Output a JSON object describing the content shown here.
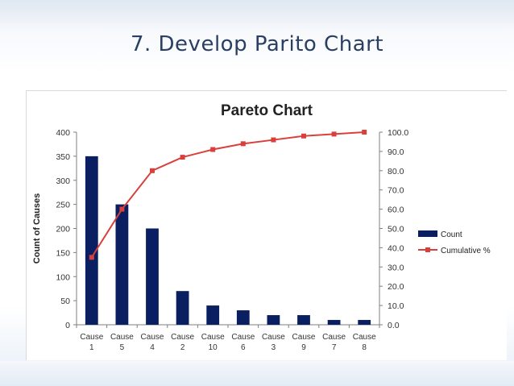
{
  "slide": {
    "title": "7. Develop Parito Chart"
  },
  "chart_data": {
    "type": "bar",
    "title": "Pareto Chart",
    "ylabel": "Count of Causes",
    "y2label": "",
    "categories": [
      [
        "Cause",
        "1"
      ],
      [
        "Cause",
        "5"
      ],
      [
        "Cause",
        "4"
      ],
      [
        "Cause",
        "2"
      ],
      [
        "Cause",
        "10"
      ],
      [
        "Cause",
        "6"
      ],
      [
        "Cause",
        "3"
      ],
      [
        "Cause",
        "9"
      ],
      [
        "Cause",
        "7"
      ],
      [
        "Cause",
        "8"
      ]
    ],
    "series": [
      {
        "name": "Count",
        "type": "bar",
        "axis": "left",
        "color": "#0a1f62",
        "values": [
          350,
          250,
          200,
          70,
          40,
          30,
          20,
          20,
          10,
          10
        ]
      },
      {
        "name": "Cumulative %",
        "type": "line",
        "axis": "right",
        "color": "#d9403b",
        "values": [
          35,
          60,
          80,
          87,
          91,
          94,
          96,
          98,
          99,
          100
        ]
      }
    ],
    "ylim": [
      0,
      400
    ],
    "y2lim": [
      0,
      100
    ],
    "yticks": [
      "0",
      "50",
      "100",
      "150",
      "200",
      "250",
      "300",
      "350",
      "400"
    ],
    "y2ticks": [
      "0.0",
      "10.0",
      "20.0",
      "30.0",
      "40.0",
      "50.0",
      "60.0",
      "70.0",
      "80.0",
      "90.0",
      "100.0"
    ],
    "grid": false,
    "legend_position": "right"
  }
}
